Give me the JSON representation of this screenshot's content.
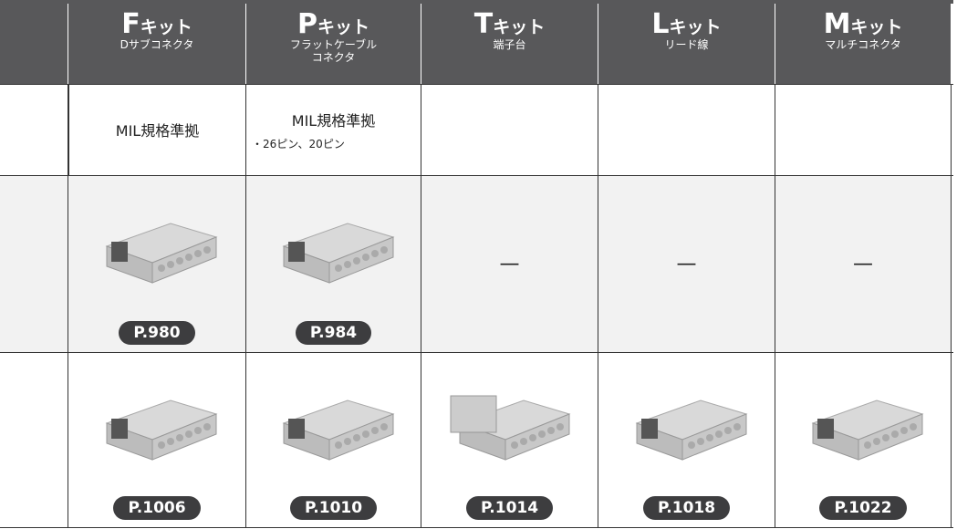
{
  "header": {
    "columns": [
      {
        "letter": "F",
        "name": "キット",
        "sub": [
          "Dサブコネクタ"
        ]
      },
      {
        "letter": "P",
        "name": "キット",
        "sub": [
          "フラットケーブル",
          "コネクタ"
        ]
      },
      {
        "letter": "T",
        "name": "キット",
        "sub": [
          "端子台"
        ]
      },
      {
        "letter": "L",
        "name": "キット",
        "sub": [
          "リード線"
        ]
      },
      {
        "letter": "M",
        "name": "キット",
        "sub": [
          "マルチコネクタ"
        ]
      }
    ]
  },
  "spec_row": [
    {
      "text": "MIL規格準拠"
    },
    {
      "text": "MIL規格準拠",
      "note": "・26ピン、20ピン"
    },
    null,
    null,
    null
  ],
  "row_a": [
    "P.980",
    "P.984",
    "—",
    "—",
    "—"
  ],
  "row_b": [
    "P.1006",
    "P.1010",
    "P.1014",
    "P.1018",
    "P.1022"
  ]
}
